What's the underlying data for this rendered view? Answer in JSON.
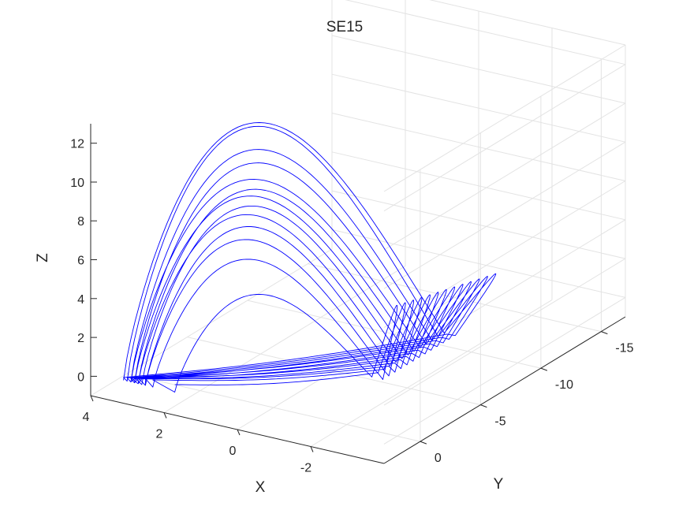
{
  "chart_data": {
    "type": "line",
    "projection": "3d",
    "title": "SE15",
    "xlabel": "X",
    "ylabel": "Y",
    "zlabel": "Z",
    "xlim": [
      -4,
      4
    ],
    "ylim": [
      -17,
      3
    ],
    "zlim": [
      -1,
      13
    ],
    "xticks": [
      4,
      2,
      0,
      -2
    ],
    "yticks": [
      0,
      -5,
      -10,
      -15
    ],
    "zticks": [
      0,
      2,
      4,
      6,
      8,
      10,
      12
    ],
    "grid": true,
    "line_color": "#0000ff",
    "series": [
      {
        "attractor_loops": [
          {
            "peak_z": 12.0,
            "peak_x": 0.5,
            "left_x": 3.6,
            "right_y": -10.5,
            "lobe_y": -16.5
          },
          {
            "peak_z": 11.9,
            "peak_x": 0.6,
            "left_x": 3.5,
            "right_y": -10.0,
            "lobe_y": -16.0
          },
          {
            "peak_z": 10.8,
            "peak_x": 0.4,
            "left_x": 3.4,
            "right_y": -9.5,
            "lobe_y": -15.5
          },
          {
            "peak_z": 10.2,
            "peak_x": 0.7,
            "left_x": 3.3,
            "right_y": -9.0,
            "lobe_y": -15.0
          },
          {
            "peak_z": 9.4,
            "peak_x": 0.3,
            "left_x": 3.4,
            "right_y": -8.5,
            "lobe_y": -14.5
          },
          {
            "peak_z": 9.0,
            "peak_x": 0.8,
            "left_x": 3.2,
            "right_y": -8.0,
            "lobe_y": -14.0
          },
          {
            "peak_z": 8.7,
            "peak_x": 0.2,
            "left_x": 3.3,
            "right_y": -7.5,
            "lobe_y": -13.5
          },
          {
            "peak_z": 8.3,
            "peak_x": 0.6,
            "left_x": 3.1,
            "right_y": -7.0,
            "lobe_y": -13.0
          },
          {
            "peak_z": 7.9,
            "peak_x": 0.4,
            "left_x": 3.2,
            "right_y": -6.5,
            "lobe_y": -12.5
          },
          {
            "peak_z": 7.4,
            "peak_x": 0.9,
            "left_x": 3.0,
            "right_y": -6.0,
            "lobe_y": -12.0
          },
          {
            "peak_z": 6.8,
            "peak_x": 0.5,
            "left_x": 3.0,
            "right_y": -5.5,
            "lobe_y": -11.5
          },
          {
            "peak_z": 5.9,
            "peak_x": 0.3,
            "left_x": 2.8,
            "right_y": -5.0,
            "lobe_y": -11.0
          },
          {
            "peak_z": 4.3,
            "peak_x": 0.6,
            "left_x": 2.2,
            "right_y": -4.5,
            "lobe_y": -10.5
          }
        ]
      }
    ]
  }
}
